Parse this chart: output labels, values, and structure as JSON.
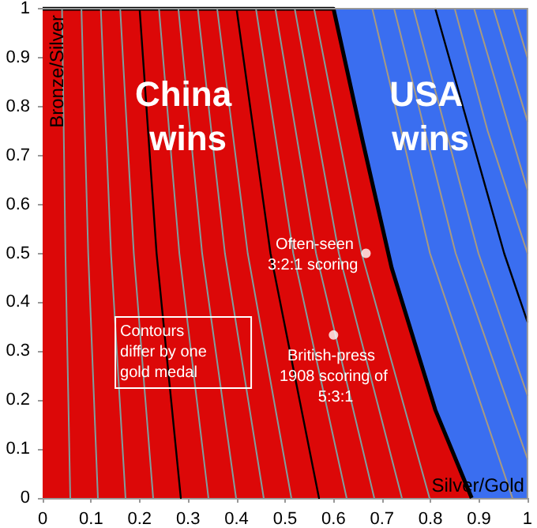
{
  "chart_data": {
    "type": "line",
    "xlabel": "Silver/Gold",
    "ylabel": "Bronze/Silver",
    "xlim": [
      0,
      1
    ],
    "ylim": [
      0,
      1
    ],
    "xticks": [
      0,
      0.1,
      0.2,
      0.3,
      0.4,
      0.5,
      0.6,
      0.7,
      0.8,
      0.9,
      1
    ],
    "yticks": [
      0,
      0.1,
      0.2,
      0.3,
      0.4,
      0.5,
      0.6,
      0.7,
      0.8,
      0.9,
      1
    ],
    "grid": false,
    "legend": false,
    "marker": "none",
    "annotations": [
      {
        "text": "Often-seen 3:2:1 scoring",
        "x": 0.667,
        "y": 0.5
      },
      {
        "text": "British-press 1908 scoring of 5:3:1",
        "x": 0.6,
        "y": 0.333
      },
      "Contours differ by one gold medal"
    ],
    "series": [
      {
        "name": "USA wins",
        "type": "area",
        "color": "#3a6ef0",
        "x": [
          0,
          1
        ],
        "values": [
          1,
          1
        ]
      },
      {
        "name": "China wins",
        "type": "area",
        "color": "#dc0808",
        "x": [
          0,
          0.6,
          0.66,
          0.72,
          0.81,
          0.885
        ],
        "values": [
          1,
          1,
          0.73,
          0.47,
          0.18,
          0
        ]
      },
      {
        "color": "#7f9f9f",
        "x": [
          0.04,
          0.047,
          0.057
        ],
        "values": [
          1,
          0.5,
          0
        ]
      },
      {
        "color": "#7f9f9f",
        "x": [
          0.08,
          0.094,
          0.114
        ],
        "values": [
          1,
          0.5,
          0
        ]
      },
      {
        "color": "#7f9f9f",
        "x": [
          0.12,
          0.141,
          0.171
        ],
        "values": [
          1,
          0.5,
          0
        ]
      },
      {
        "color": "#7f9f9f",
        "x": [
          0.16,
          0.188,
          0.228
        ],
        "values": [
          1,
          0.5,
          0
        ]
      },
      {
        "color": "#000000",
        "x": [
          0.2,
          0.235,
          0.285
        ],
        "values": [
          1,
          0.5,
          0
        ]
      },
      {
        "color": "#7f9f9f",
        "x": [
          0.24,
          0.282,
          0.342
        ],
        "values": [
          1,
          0.5,
          0
        ]
      },
      {
        "color": "#7f9f9f",
        "x": [
          0.28,
          0.329,
          0.399
        ],
        "values": [
          1,
          0.5,
          0
        ]
      },
      {
        "color": "#7f9f9f",
        "x": [
          0.32,
          0.376,
          0.456
        ],
        "values": [
          1,
          0.5,
          0
        ]
      },
      {
        "color": "#7f9f9f",
        "x": [
          0.36,
          0.423,
          0.513
        ],
        "values": [
          1,
          0.5,
          0
        ]
      },
      {
        "color": "#000000",
        "x": [
          0.4,
          0.47,
          0.57
        ],
        "values": [
          1,
          0.5,
          0
        ]
      },
      {
        "color": "#7f9f9f",
        "x": [
          0.44,
          0.517,
          0.627
        ],
        "values": [
          1,
          0.5,
          0
        ]
      },
      {
        "color": "#7f9f9f",
        "x": [
          0.48,
          0.564,
          0.684
        ],
        "values": [
          1,
          0.5,
          0
        ]
      },
      {
        "color": "#7f9f9f",
        "x": [
          0.52,
          0.611,
          0.741
        ],
        "values": [
          1,
          0.5,
          0
        ]
      },
      {
        "color": "#7f9f9f",
        "x": [
          0.56,
          0.658,
          0.798
        ],
        "values": [
          1,
          0.5,
          0
        ]
      },
      {
        "color": "#a89a80",
        "x": [
          0.68,
          0.799,
          0.969
        ],
        "values": [
          1,
          0.5,
          0
        ]
      },
      {
        "color": "#a89a80",
        "x": [
          0.725,
          0.852,
          1
        ],
        "values": [
          1,
          0.5,
          0.08
        ]
      },
      {
        "color": "#a89a80",
        "x": [
          0.765,
          0.899,
          1
        ],
        "values": [
          1,
          0.5,
          0.21
        ]
      },
      {
        "color": "#000000",
        "x": [
          0.81,
          0.952,
          1
        ],
        "values": [
          1,
          0.5,
          0.36
        ]
      },
      {
        "color": "#a89a80",
        "x": [
          0.85,
          0.918,
          1
        ],
        "values": [
          1,
          0.75,
          0.5
        ]
      },
      {
        "color": "#a89a80",
        "x": [
          0.89,
          1
        ],
        "values": [
          1,
          0.63
        ]
      },
      {
        "color": "#a89a80",
        "x": [
          0.93,
          1
        ],
        "values": [
          1,
          0.77
        ]
      },
      {
        "color": "#a89a80",
        "x": [
          0.97,
          1
        ],
        "values": [
          1,
          0.9
        ]
      },
      {
        "type": "scatter",
        "marker": "circle",
        "color": "#ffffff",
        "x": [
          0.667,
          0.6
        ],
        "values": [
          0.5,
          0.333
        ]
      }
    ]
  }
}
